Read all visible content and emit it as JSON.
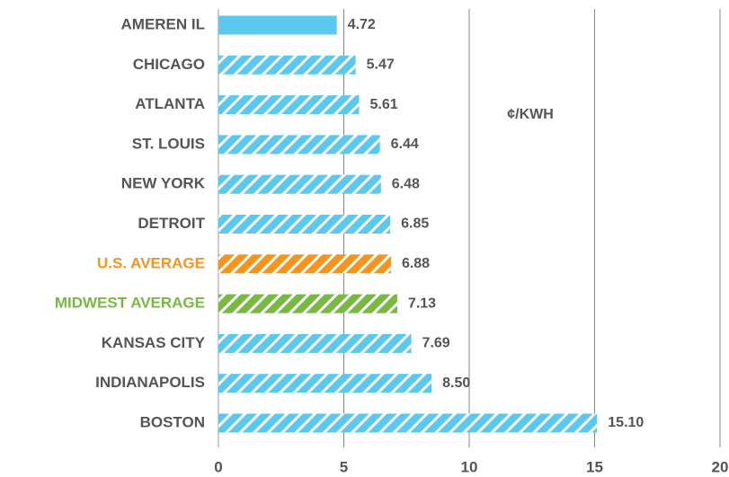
{
  "chart_data": {
    "type": "bar",
    "orientation": "horizontal",
    "annotation": "¢/KWH",
    "categories": [
      "AMEREN IL",
      "CHICAGO",
      "ATLANTA",
      "ST. LOUIS",
      "NEW YORK",
      "DETROIT",
      "U.S. AVERAGE",
      "MIDWEST AVERAGE",
      "KANSAS CITY",
      "INDIANAPOLIS",
      "BOSTON"
    ],
    "values": [
      4.72,
      5.47,
      5.61,
      6.44,
      6.48,
      6.85,
      6.88,
      7.13,
      7.69,
      8.5,
      15.1
    ],
    "value_labels": [
      "4.72",
      "5.47",
      "5.61",
      "6.44",
      "6.48",
      "6.85",
      "6.88",
      "7.13",
      "7.69",
      "8.50",
      "15.10"
    ],
    "colors": [
      "#5bc8f0",
      "#5bc8f0",
      "#5bc8f0",
      "#5bc8f0",
      "#5bc8f0",
      "#5bc8f0",
      "#f7941d",
      "#78b943",
      "#5bc8f0",
      "#5bc8f0",
      "#5bc8f0"
    ],
    "hatched": [
      false,
      true,
      true,
      true,
      true,
      true,
      true,
      true,
      true,
      true,
      true
    ],
    "category_label_colors": [
      "#555555",
      "#555555",
      "#555555",
      "#555555",
      "#555555",
      "#555555",
      "#f7941d",
      "#78b943",
      "#555555",
      "#555555",
      "#555555"
    ],
    "xlim": [
      0,
      20
    ],
    "xticks": [
      0,
      5,
      10,
      15,
      20
    ],
    "grid": true
  }
}
